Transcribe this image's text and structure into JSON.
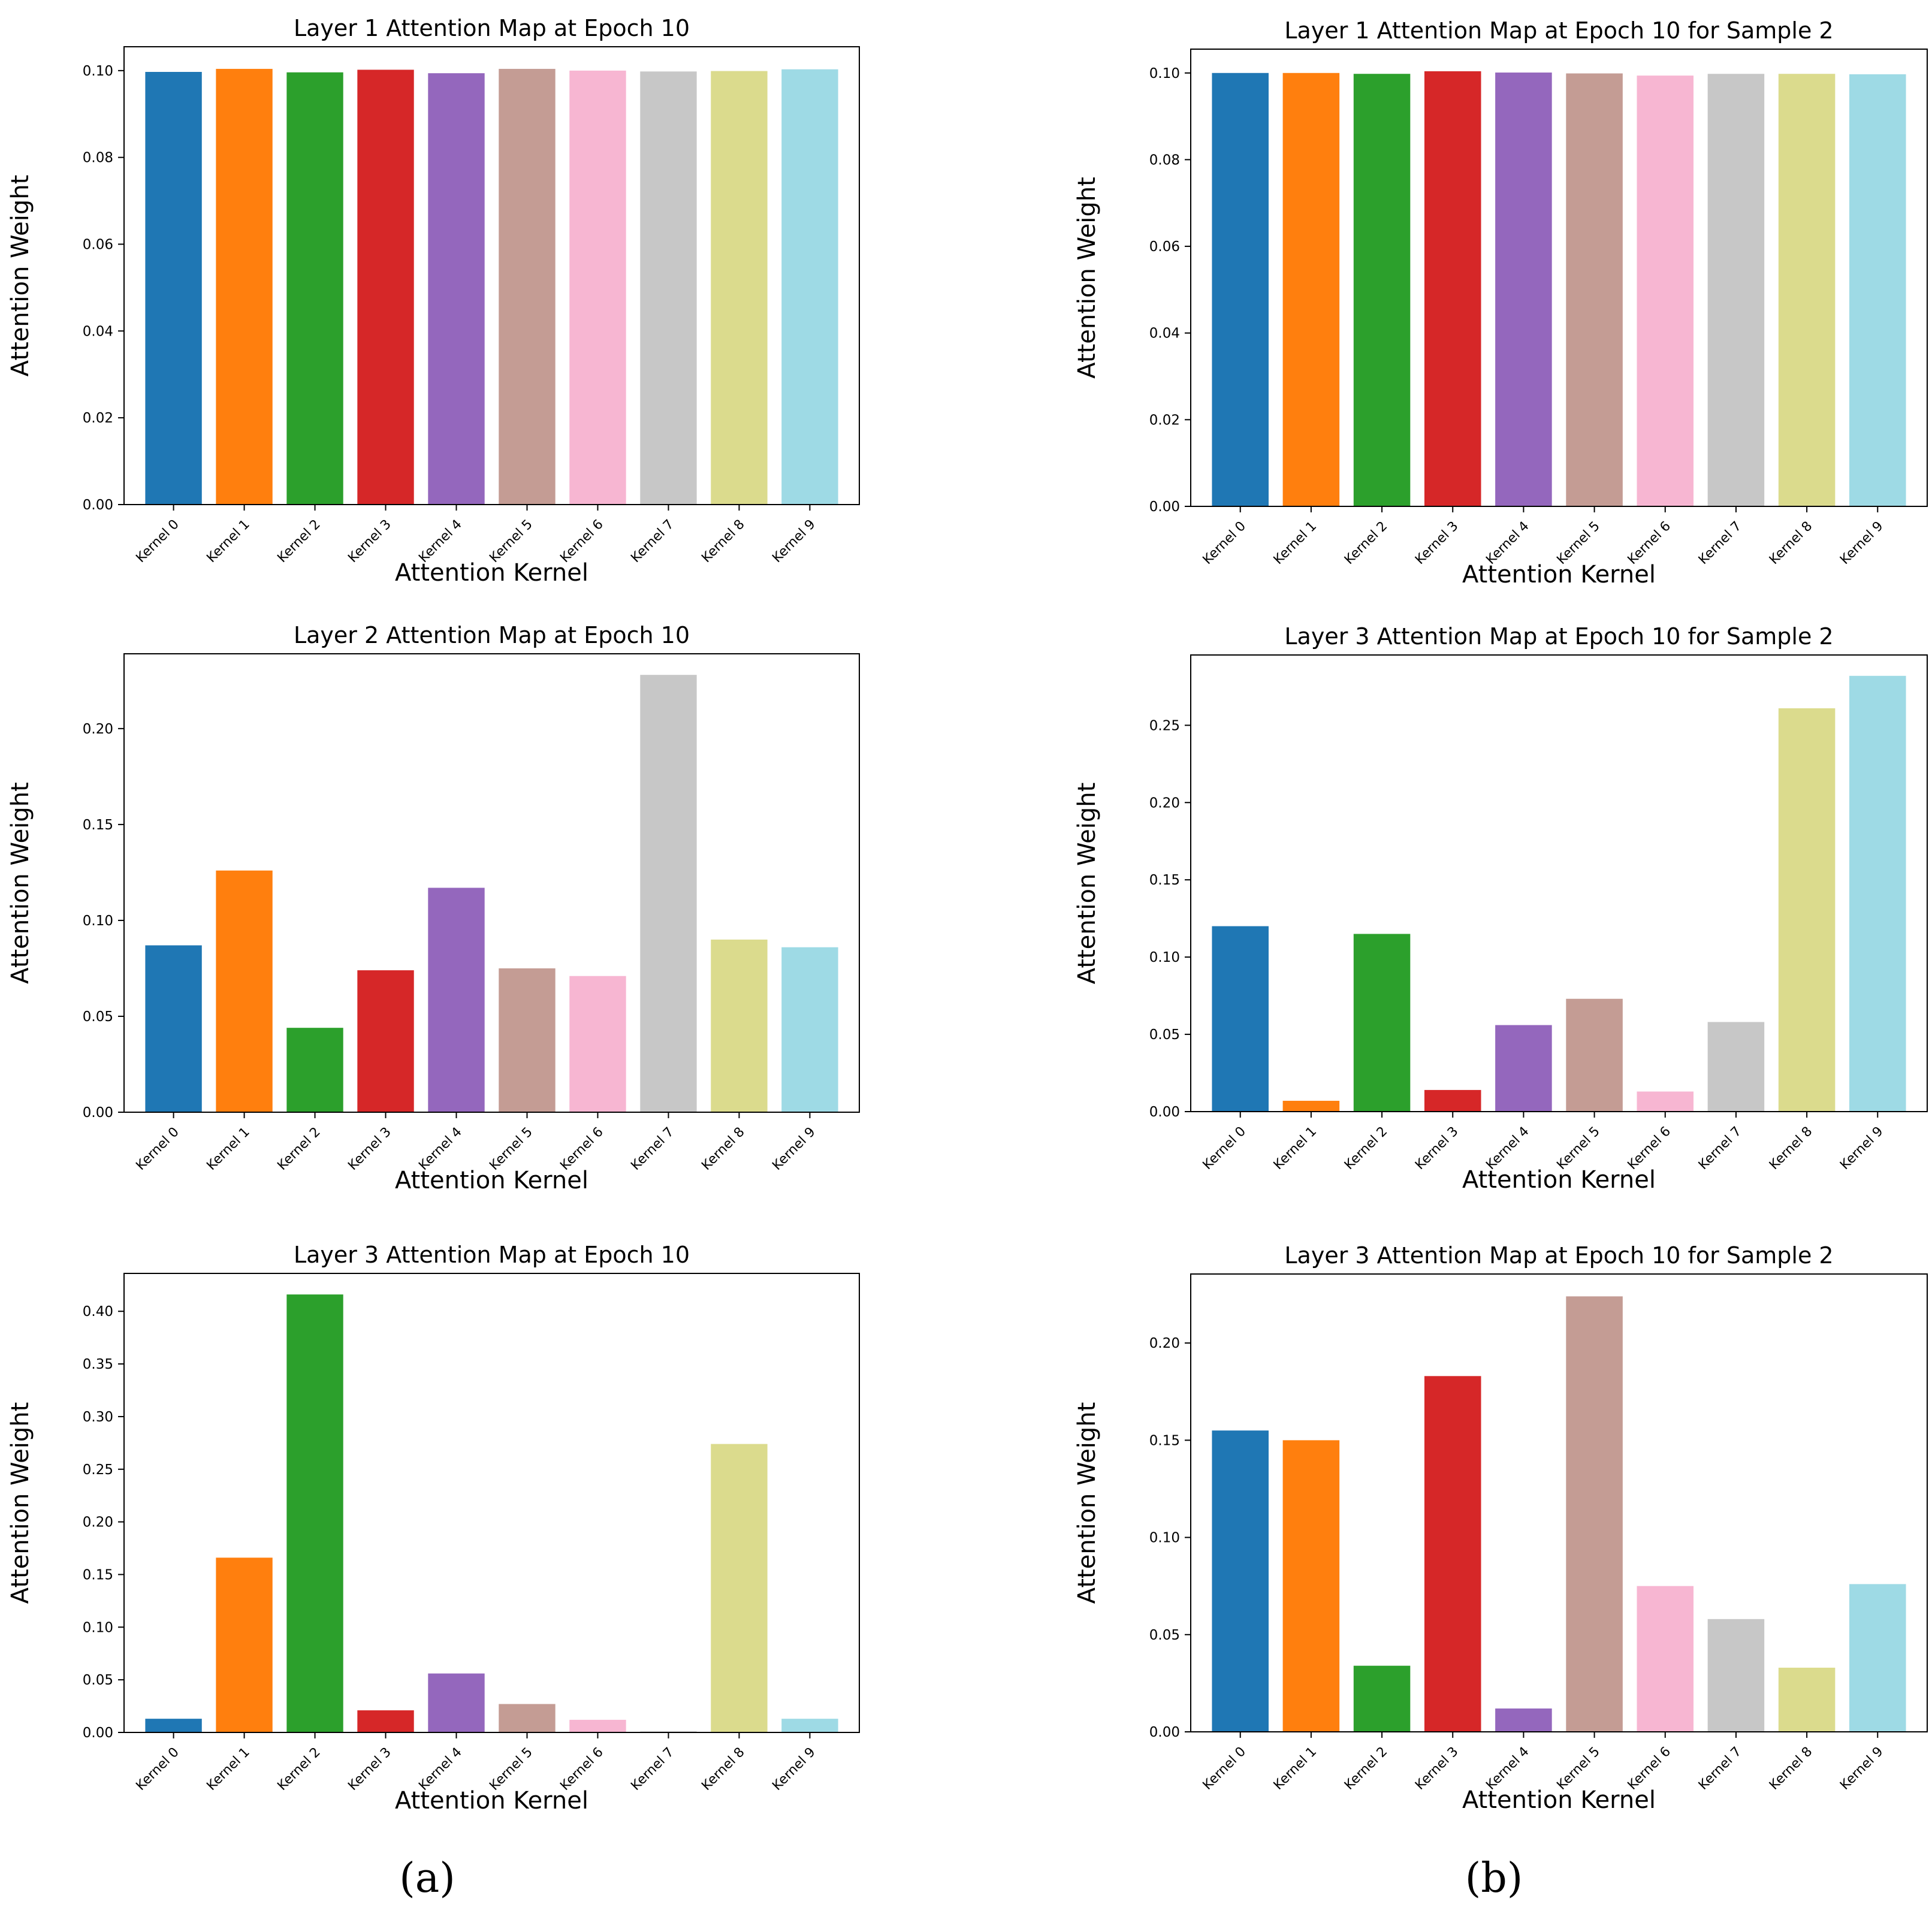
{
  "colors": [
    "#1f77b4",
    "#ff7f0e",
    "#2ca02c",
    "#d62728",
    "#9467bd",
    "#c49c94",
    "#f7b6d2",
    "#c7c7c7",
    "#dbdb8d",
    "#9edae5"
  ],
  "captions": {
    "a": "(a)",
    "b": "(b)"
  },
  "chart_data": [
    {
      "type": "bar",
      "title": "Layer 1 Attention Map at Epoch 10",
      "xlabel": "Attention Kernel",
      "ylabel": "Attention Weight",
      "categories": [
        "Kernel 0",
        "Kernel 1",
        "Kernel 2",
        "Kernel 3",
        "Kernel 4",
        "Kernel 5",
        "Kernel 6",
        "Kernel 7",
        "Kernel 8",
        "Kernel 9"
      ],
      "values": [
        0.0997,
        0.1004,
        0.0996,
        0.1002,
        0.0994,
        0.1004,
        0.1,
        0.0998,
        0.0999,
        0.1003
      ],
      "ylim": [
        0,
        0.1055
      ],
      "yticks": [
        0.0,
        0.02,
        0.04,
        0.06,
        0.08,
        0.1
      ],
      "ytick_labels": [
        "0.00",
        "0.02",
        "0.04",
        "0.06",
        "0.08",
        "0.10"
      ],
      "grid": false
    },
    {
      "type": "bar",
      "title": "Layer 1 Attention Map at Epoch 10 for Sample 2",
      "xlabel": "Attention Kernel",
      "ylabel": "Attention Weight",
      "categories": [
        "Kernel 0",
        "Kernel 1",
        "Kernel 2",
        "Kernel 3",
        "Kernel 4",
        "Kernel 5",
        "Kernel 6",
        "Kernel 7",
        "Kernel 8",
        "Kernel 9"
      ],
      "values": [
        0.1,
        0.1,
        0.0998,
        0.1004,
        0.1001,
        0.0999,
        0.0994,
        0.0998,
        0.0998,
        0.0997
      ],
      "ylim": [
        0,
        0.1055
      ],
      "yticks": [
        0.0,
        0.02,
        0.04,
        0.06,
        0.08,
        0.1
      ],
      "ytick_labels": [
        "0.00",
        "0.02",
        "0.04",
        "0.06",
        "0.08",
        "0.10"
      ],
      "grid": false
    },
    {
      "type": "bar",
      "title": "Layer 2 Attention Map at Epoch 10",
      "xlabel": "Attention Kernel",
      "ylabel": "Attention Weight",
      "categories": [
        "Kernel 0",
        "Kernel 1",
        "Kernel 2",
        "Kernel 3",
        "Kernel 4",
        "Kernel 5",
        "Kernel 6",
        "Kernel 7",
        "Kernel 8",
        "Kernel 9"
      ],
      "values": [
        0.087,
        0.126,
        0.044,
        0.074,
        0.117,
        0.075,
        0.071,
        0.228,
        0.09,
        0.086
      ],
      "ylim": [
        0,
        0.239
      ],
      "yticks": [
        0.0,
        0.05,
        0.1,
        0.15,
        0.2
      ],
      "ytick_labels": [
        "0.00",
        "0.05",
        "0.10",
        "0.15",
        "0.20"
      ],
      "grid": false
    },
    {
      "type": "bar",
      "title": "Layer 3 Attention Map at Epoch 10 for Sample 2",
      "xlabel": "Attention Kernel",
      "ylabel": "Attention Weight",
      "categories": [
        "Kernel 0",
        "Kernel 1",
        "Kernel 2",
        "Kernel 3",
        "Kernel 4",
        "Kernel 5",
        "Kernel 6",
        "Kernel 7",
        "Kernel 8",
        "Kernel 9"
      ],
      "values": [
        0.12,
        0.007,
        0.115,
        0.014,
        0.056,
        0.073,
        0.013,
        0.058,
        0.261,
        0.282
      ],
      "ylim": [
        0,
        0.2955
      ],
      "yticks": [
        0.0,
        0.05,
        0.1,
        0.15,
        0.2,
        0.25
      ],
      "ytick_labels": [
        "0.00",
        "0.05",
        "0.10",
        "0.15",
        "0.20",
        "0.25"
      ],
      "grid": false
    },
    {
      "type": "bar",
      "title": "Layer 3 Attention Map at Epoch 10",
      "xlabel": "Attention Kernel",
      "ylabel": "Attention Weight",
      "categories": [
        "Kernel 0",
        "Kernel 1",
        "Kernel 2",
        "Kernel 3",
        "Kernel 4",
        "Kernel 5",
        "Kernel 6",
        "Kernel 7",
        "Kernel 8",
        "Kernel 9"
      ],
      "values": [
        0.013,
        0.166,
        0.416,
        0.021,
        0.056,
        0.027,
        0.012,
        0.001,
        0.274,
        0.013
      ],
      "ylim": [
        0,
        0.436
      ],
      "yticks": [
        0.0,
        0.05,
        0.1,
        0.15,
        0.2,
        0.25,
        0.3,
        0.35,
        0.4
      ],
      "ytick_labels": [
        "0.00",
        "0.05",
        "0.10",
        "0.15",
        "0.20",
        "0.25",
        "0.30",
        "0.35",
        "0.40"
      ],
      "grid": false
    },
    {
      "type": "bar",
      "title": "Layer 3 Attention Map at Epoch 10 for Sample 2",
      "xlabel": "Attention Kernel",
      "ylabel": "Attention Weight",
      "categories": [
        "Kernel 0",
        "Kernel 1",
        "Kernel 2",
        "Kernel 3",
        "Kernel 4",
        "Kernel 5",
        "Kernel 6",
        "Kernel 7",
        "Kernel 8",
        "Kernel 9"
      ],
      "values": [
        0.155,
        0.15,
        0.034,
        0.183,
        0.012,
        0.224,
        0.075,
        0.058,
        0.033,
        0.076
      ],
      "ylim": [
        0,
        0.2355
      ],
      "yticks": [
        0.0,
        0.05,
        0.1,
        0.15,
        0.2
      ],
      "ytick_labels": [
        "0.00",
        "0.05",
        "0.10",
        "0.15",
        "0.20"
      ],
      "grid": false
    }
  ]
}
